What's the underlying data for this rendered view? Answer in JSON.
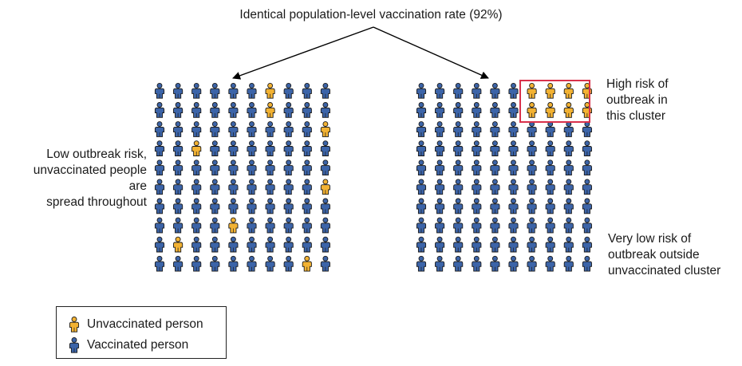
{
  "title": "Identical population-level vaccination rate (92%)",
  "left_caption": [
    "Low outbreak risk,",
    "unvaccinated people are",
    "spread throughout"
  ],
  "high_risk_caption": [
    "High risk of",
    "outbreak in",
    "this cluster"
  ],
  "low_risk_caption": [
    "Very low risk of",
    "outbreak outside",
    "unvaccinated cluster"
  ],
  "legend": {
    "unvaccinated": "Unvaccinated person",
    "vaccinated": "Vaccinated person"
  },
  "colors": {
    "vaccinated": "#3c64a8",
    "unvaccinated": "#f2b233",
    "outline": "#1a1a1a",
    "cluster_box": "#d9314b"
  },
  "grids": {
    "rows": 10,
    "cols": 10,
    "left_unvaccinated": [
      [
        0,
        6
      ],
      [
        1,
        6
      ],
      [
        2,
        9
      ],
      [
        3,
        2
      ],
      [
        5,
        9
      ],
      [
        7,
        4
      ],
      [
        8,
        1
      ],
      [
        9,
        8
      ]
    ],
    "right_unvaccinated": [
      [
        0,
        6
      ],
      [
        0,
        7
      ],
      [
        0,
        8
      ],
      [
        0,
        9
      ],
      [
        1,
        6
      ],
      [
        1,
        7
      ],
      [
        1,
        8
      ],
      [
        1,
        9
      ]
    ]
  }
}
